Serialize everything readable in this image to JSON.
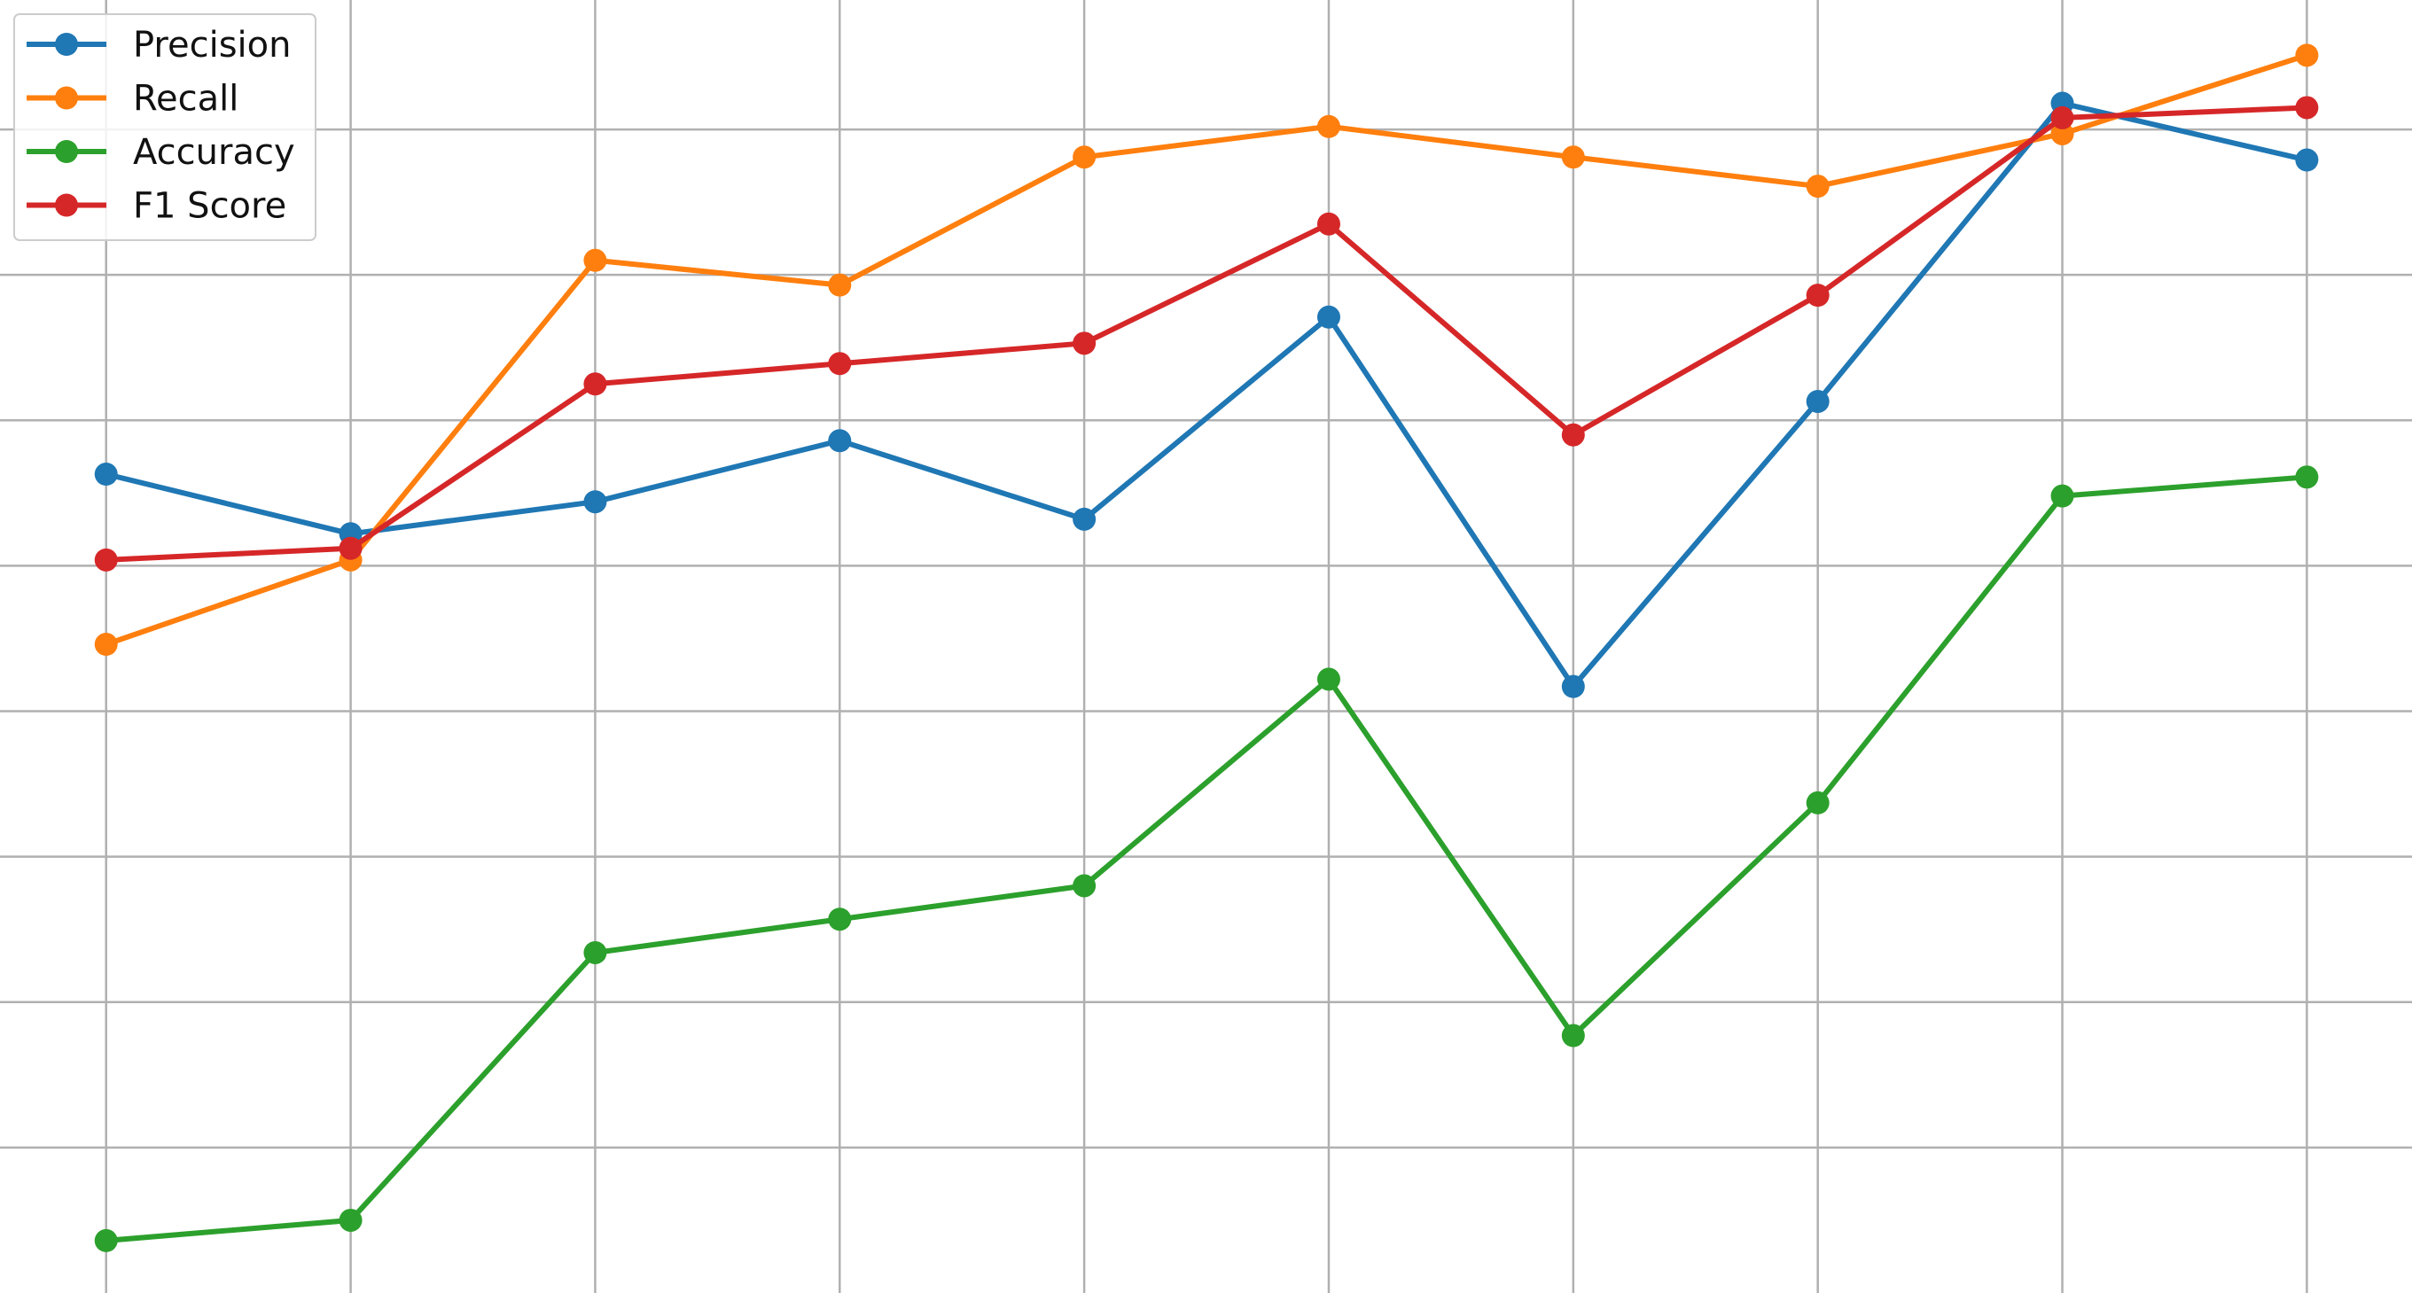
{
  "chart_data": {
    "type": "line",
    "title": "",
    "xlabel": "",
    "ylabel": "",
    "x": [
      1,
      2,
      3,
      4,
      5,
      6,
      7,
      8,
      9,
      10
    ],
    "xlim": [
      0.566,
      10.43
    ],
    "ylim": [
      0,
      8.89
    ],
    "x_gridlines": [
      1,
      2,
      3,
      4,
      5,
      6,
      7,
      8,
      9,
      10
    ],
    "y_gridlines": [
      1,
      2,
      3,
      4,
      5,
      6,
      7,
      8
    ],
    "grid": true,
    "tick_labels_visible": false,
    "legend_position": "top-left",
    "series": [
      {
        "name": "Precision",
        "color": "#1f77b4",
        "values": [
          5.63,
          5.22,
          5.44,
          5.86,
          5.32,
          6.71,
          4.17,
          6.13,
          8.18,
          7.79
        ]
      },
      {
        "name": "Recall",
        "color": "#ff7f0e",
        "values": [
          4.46,
          5.04,
          7.1,
          6.93,
          7.81,
          8.02,
          7.81,
          7.61,
          7.97,
          8.51
        ]
      },
      {
        "name": "Accuracy",
        "color": "#2ca02c",
        "values": [
          0.36,
          0.5,
          2.34,
          2.57,
          2.8,
          4.22,
          1.77,
          3.37,
          5.48,
          5.61
        ]
      },
      {
        "name": "F1 Score",
        "color": "#d62728",
        "values": [
          5.04,
          5.12,
          6.25,
          6.39,
          6.53,
          7.35,
          5.9,
          6.86,
          8.08,
          8.15
        ]
      }
    ]
  }
}
